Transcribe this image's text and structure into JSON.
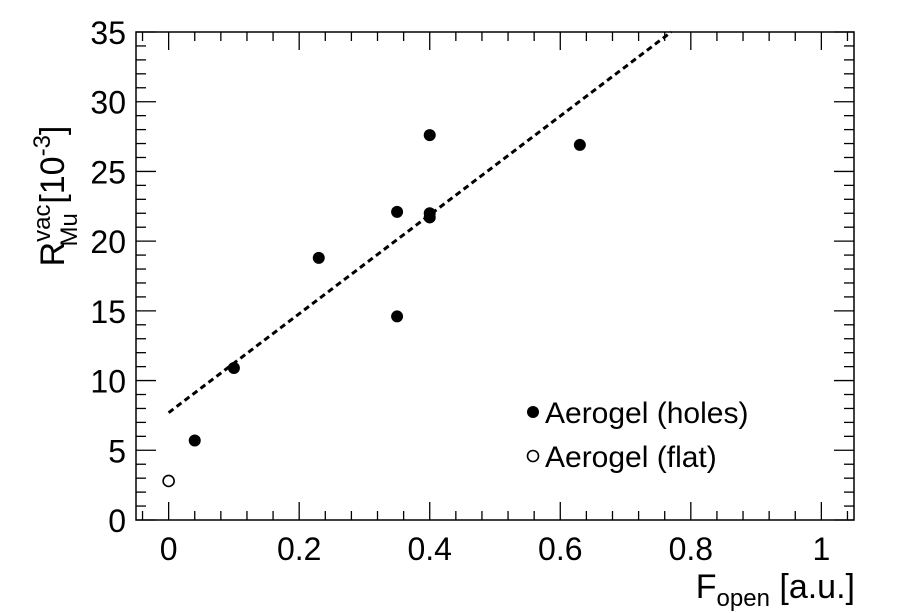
{
  "chart_data": {
    "type": "scatter",
    "title": "",
    "xlabel": {
      "main": "F",
      "sub": "open",
      "unit": " [a.u.]"
    },
    "ylabel": {
      "main": "R",
      "sup": "vac",
      "sub": "Mu",
      "unit_prefix": " [10",
      "unit_exp": "-3",
      "unit_suffix": "]"
    },
    "xlim": [
      -0.05,
      1.05
    ],
    "ylim": [
      0,
      35
    ],
    "x_ticks": [
      0,
      0.2,
      0.4,
      0.6,
      0.8,
      1
    ],
    "x_tick_labels": [
      "0",
      "0.2",
      "0.4",
      "0.6",
      "0.8",
      "1"
    ],
    "y_ticks": [
      0,
      5,
      10,
      15,
      20,
      25,
      30,
      35
    ],
    "y_tick_labels": [
      "0",
      "5",
      "10",
      "15",
      "20",
      "25",
      "30",
      "35"
    ],
    "legend_position": "bottom-right",
    "series": [
      {
        "name": "Aerogel (holes)",
        "marker": "filled-circle",
        "color": "#000000",
        "points": [
          {
            "x": 0.04,
            "y": 5.7
          },
          {
            "x": 0.1,
            "y": 10.9
          },
          {
            "x": 0.23,
            "y": 18.8
          },
          {
            "x": 0.35,
            "y": 22.1
          },
          {
            "x": 0.35,
            "y": 14.6
          },
          {
            "x": 0.4,
            "y": 27.6
          },
          {
            "x": 0.4,
            "y": 22.0
          },
          {
            "x": 0.4,
            "y": 21.7
          },
          {
            "x": 0.63,
            "y": 26.9
          }
        ]
      },
      {
        "name": "Aerogel (flat)",
        "marker": "open-circle",
        "color": "#000000",
        "points": [
          {
            "x": 0.0,
            "y": 2.8
          }
        ]
      }
    ],
    "fit_line": {
      "style": "dashed",
      "color": "#000000",
      "from": {
        "x": 0.0,
        "y": 7.7
      },
      "to": {
        "x": 0.77,
        "y": 35.0
      }
    }
  }
}
